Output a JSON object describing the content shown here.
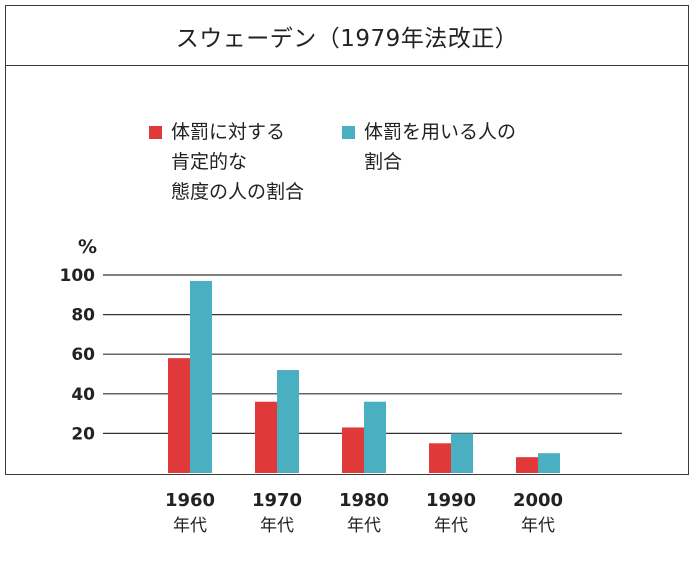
{
  "chart_data": {
    "type": "bar",
    "title": "スウェーデン（1979年法改正）",
    "unit_label": "%",
    "categories": [
      "1960",
      "1970",
      "1980",
      "1990",
      "2000"
    ],
    "category_suffix": "年代",
    "y_ticks": [
      20,
      40,
      60,
      80,
      100
    ],
    "ylim": [
      0,
      100
    ],
    "series": [
      {
        "name": "体罰に対する肯定的な態度の人の割合",
        "legend_lines": [
          "体罰に対する",
          "肯定的な",
          "態度の人の割合"
        ],
        "color": "#E0393A",
        "values": [
          58,
          36,
          23,
          15,
          8
        ]
      },
      {
        "name": "体罰を用いる人の割合",
        "legend_lines": [
          "体罰を用いる人の",
          "割合"
        ],
        "color": "#4AAFC0",
        "values": [
          97,
          52,
          36,
          20,
          10
        ]
      }
    ]
  }
}
